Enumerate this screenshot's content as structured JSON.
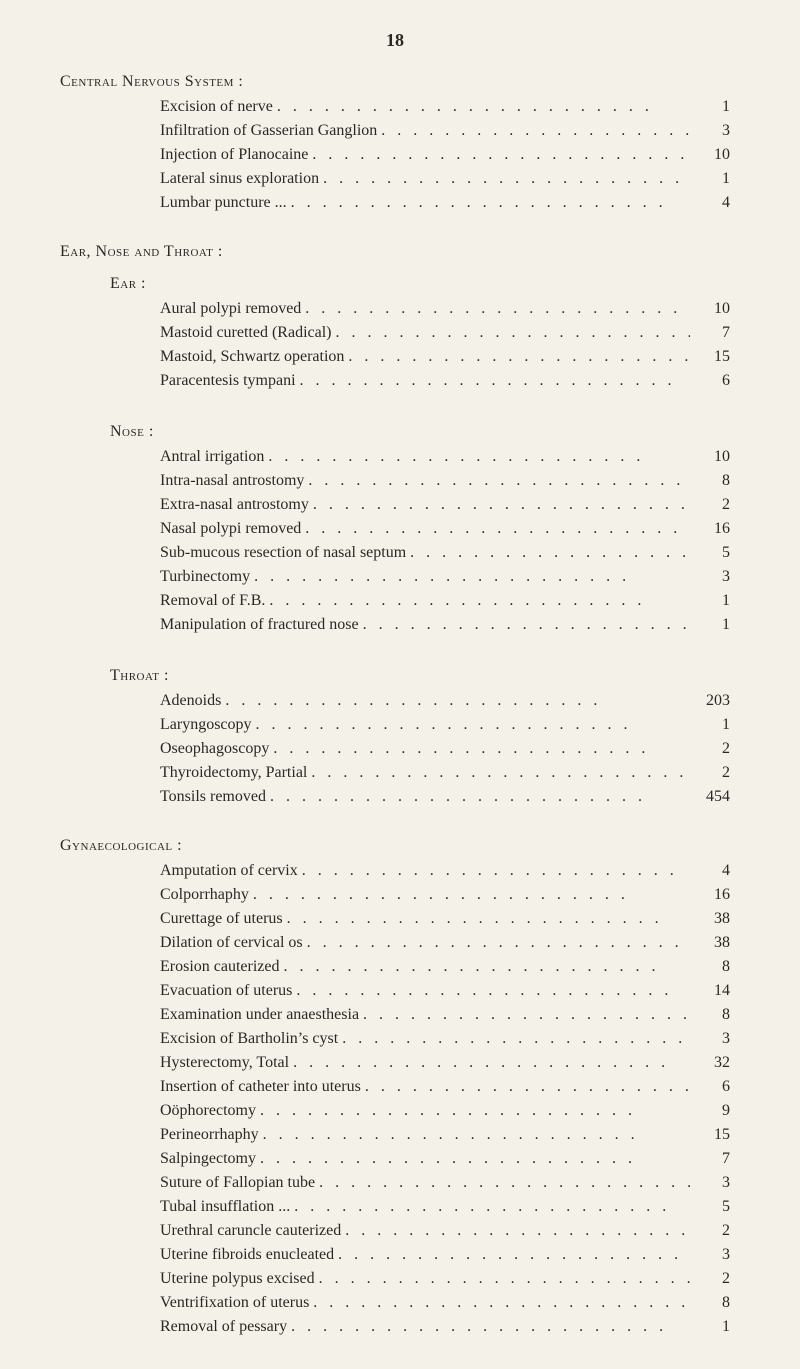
{
  "page_number": "18",
  "dot_leader": ".  .  .  .  .  .  .  .  .  .  .  .  .  .  .  .  .  .  .  .  .  .  .  .",
  "sections": {
    "cns": {
      "heading": "Central Nervous System :",
      "items": [
        {
          "label": "Excision of nerve",
          "value": "1"
        },
        {
          "label": "Infiltration of Gasserian Ganglion",
          "value": "3"
        },
        {
          "label": "Injection of Planocaine",
          "value": "10"
        },
        {
          "label": "Lateral sinus exploration",
          "value": "1"
        },
        {
          "label": "Lumbar puncture ...",
          "value": "4"
        }
      ]
    },
    "ent": {
      "heading": "Ear, Nose and Throat :",
      "ear": {
        "heading": "Ear :",
        "items": [
          {
            "label": "Aural polypi removed",
            "value": "10"
          },
          {
            "label": "Mastoid curetted (Radical)",
            "value": "7"
          },
          {
            "label": "Mastoid, Schwartz operation",
            "value": "15"
          },
          {
            "label": "Paracentesis tympani",
            "value": "6"
          }
        ]
      },
      "nose": {
        "heading": "Nose :",
        "items": [
          {
            "label": "Antral irrigation",
            "value": "10"
          },
          {
            "label": "Intra-nasal antrostomy",
            "value": "8"
          },
          {
            "label": "Extra-nasal antrostomy",
            "value": "2"
          },
          {
            "label": "Nasal polypi removed",
            "value": "16"
          },
          {
            "label": "Sub-mucous resection of nasal septum",
            "value": "5"
          },
          {
            "label": "Turbinectomy",
            "value": "3"
          },
          {
            "label": "Removal of F.B.",
            "value": "1"
          },
          {
            "label": "Manipulation of fractured nose",
            "value": "1"
          }
        ]
      },
      "throat": {
        "heading": "Throat :",
        "items": [
          {
            "label": "Adenoids",
            "value": "203"
          },
          {
            "label": "Laryngoscopy",
            "value": "1"
          },
          {
            "label": "Oseophagoscopy",
            "value": "2"
          },
          {
            "label": "Thyroidectomy, Partial",
            "value": "2"
          },
          {
            "label": "Tonsils removed",
            "value": "454"
          }
        ]
      }
    },
    "gyn": {
      "heading": "Gynaecological :",
      "items": [
        {
          "label": "Amputation of cervix",
          "value": "4"
        },
        {
          "label": "Colporrhaphy",
          "value": "16"
        },
        {
          "label": "Curettage of uterus",
          "value": "38"
        },
        {
          "label": "Dilation of cervical os",
          "value": "38"
        },
        {
          "label": "Erosion cauterized",
          "value": "8"
        },
        {
          "label": "Evacuation of uterus",
          "value": "14"
        },
        {
          "label": "Examination under anaesthesia",
          "value": "8"
        },
        {
          "label": "Excision of Bartholin’s cyst",
          "value": "3"
        },
        {
          "label": "Hysterectomy, Total",
          "value": "32"
        },
        {
          "label": "Insertion of catheter into uterus",
          "value": "6"
        },
        {
          "label": "Oöphorectomy",
          "value": "9"
        },
        {
          "label": "Perineorrhaphy",
          "value": "15"
        },
        {
          "label": "Salpingectomy",
          "value": "7"
        },
        {
          "label": "Suture of Fallopian tube",
          "value": "3"
        },
        {
          "label": "Tubal insufflation ...",
          "value": "5"
        },
        {
          "label": "Urethral caruncle cauterized",
          "value": "2"
        },
        {
          "label": "Uterine fibroids enucleated",
          "value": "3"
        },
        {
          "label": "Uterine polypus excised",
          "value": "2"
        },
        {
          "label": "Ventrifixation of uterus",
          "value": "8"
        },
        {
          "label": "Removal of pessary",
          "value": "1"
        }
      ]
    }
  }
}
